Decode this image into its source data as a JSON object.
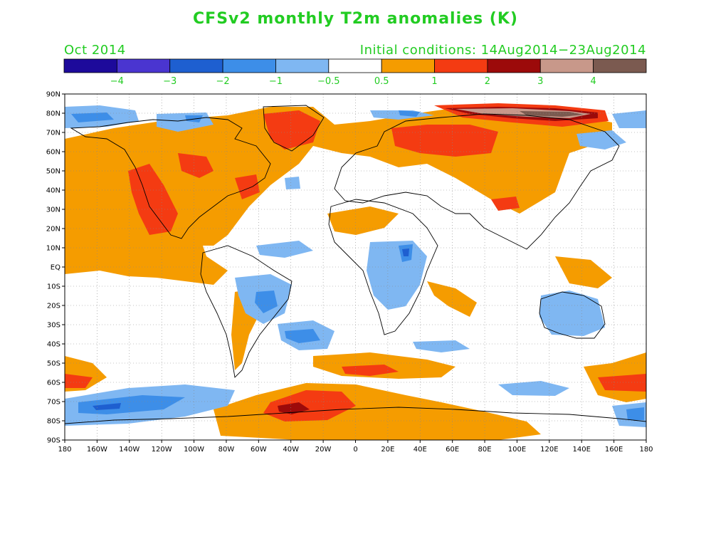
{
  "title": "CFSv2 monthly T2m anomalies (K)",
  "month": "Oct 2014",
  "initial_conditions": "Initial conditions: 14Aug2014−23Aug2014",
  "colorbar": {
    "colors": [
      "#1d0a9b",
      "#4a35d0",
      "#1e5fd0",
      "#3d8ee8",
      "#7fb7f2",
      "#ffffff",
      "#f59c00",
      "#f43b12",
      "#9c0a0a",
      "#c8988a",
      "#7b5a50"
    ],
    "labels": [
      "−4",
      "−3",
      "−2",
      "−1",
      "−0.5",
      "0.5",
      "1",
      "2",
      "3",
      "4"
    ]
  },
  "map": {
    "lat_ticks": [
      "90N",
      "80N",
      "70N",
      "60N",
      "50N",
      "40N",
      "30N",
      "20N",
      "10N",
      "EQ",
      "10S",
      "20S",
      "30S",
      "40S",
      "50S",
      "60S",
      "70S",
      "80S",
      "90S"
    ],
    "lon_ticks": [
      "180",
      "160W",
      "140W",
      "120W",
      "100W",
      "80W",
      "60W",
      "40W",
      "20W",
      "0",
      "20E",
      "40E",
      "60E",
      "80E",
      "100E",
      "120E",
      "140E",
      "160E",
      "180"
    ]
  }
}
